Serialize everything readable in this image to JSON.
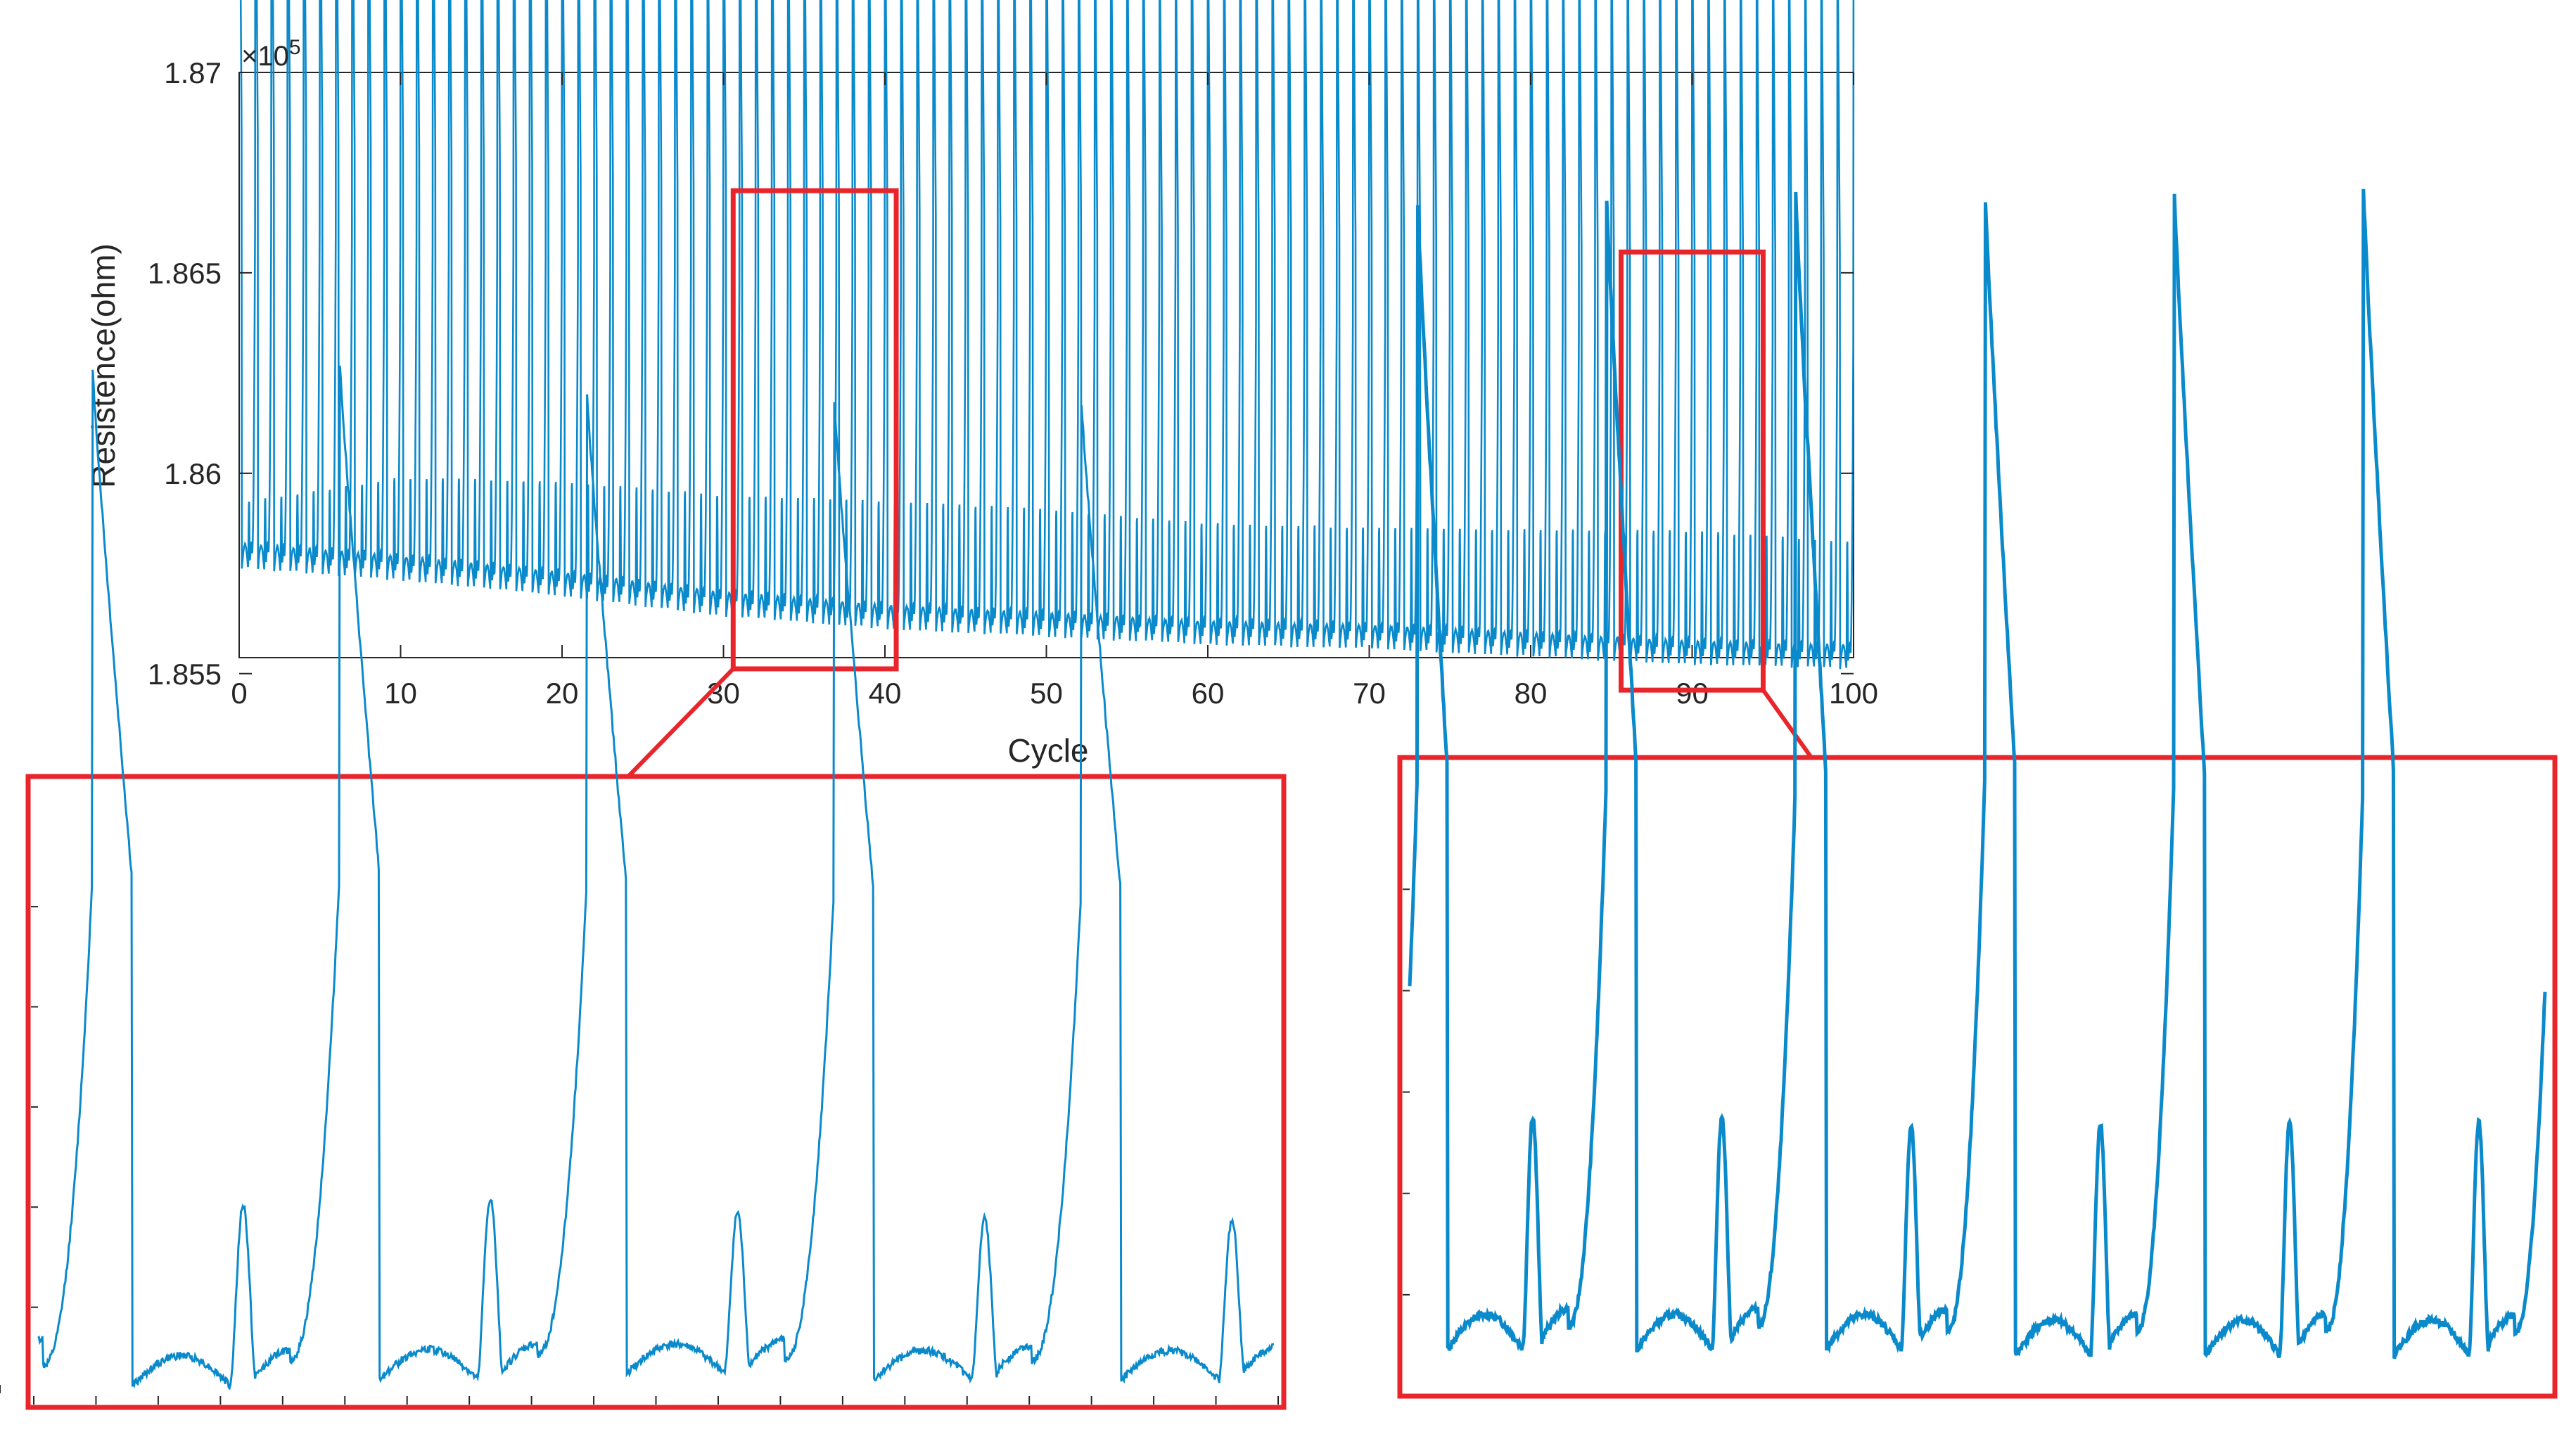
{
  "colors": {
    "series": "#0a8acb",
    "highlight": "#e8252b",
    "axis": "#262626",
    "background": "#ffffff"
  },
  "chart_data": [
    {
      "id": "main",
      "type": "line",
      "title": "",
      "xlabel": "Cycle",
      "ylabel": "Resistence(ohm)",
      "exponent_label": "×10",
      "exponent_power": "5",
      "xlim": [
        0,
        100
      ],
      "ylim": [
        1.8554,
        1.87
      ],
      "xticks": [
        0,
        10,
        20,
        30,
        40,
        50,
        60,
        70,
        80,
        90,
        100
      ],
      "xtick_labels": [
        "0",
        "10",
        "20",
        "30",
        "40",
        "50",
        "60",
        "70",
        "80",
        "90",
        "100"
      ],
      "yticks": [
        1.855,
        1.86,
        1.865,
        1.87
      ],
      "ytick_labels": [
        "1.855",
        "1.86",
        "1.865",
        "1.87"
      ],
      "grid": false,
      "series": [
        {
          "peaks": {
            "x": [
              0,
              10,
              20,
              30,
              40,
              50,
              60,
              70,
              80,
              85,
              90,
              95,
              100
            ],
            "y": [
              1.868,
              1.8675,
              1.867,
              1.8665,
              1.866,
              1.8657,
              1.8655,
              1.8654,
              1.8652,
              1.8651,
              1.8651,
              1.8649,
              1.8649
            ]
          },
          "troughs": {
            "x": [
              0,
              10,
              20,
              30,
              40,
              50,
              60,
              70,
              80,
              90,
              100
            ],
            "y": [
              1.8575,
              1.8572,
              1.8568,
              1.8563,
              1.856,
              1.8558,
              1.8556,
              1.8555,
              1.8553,
              1.8551,
              1.855
            ]
          },
          "shoulder": {
            "x": [
              0,
              10,
              20,
              30,
              40,
              50,
              60,
              70,
              80,
              90,
              100
            ],
            "y": [
              1.8585,
              1.8588,
              1.8586,
              1.8582,
              1.858,
              1.8578,
              1.8575,
              1.8574,
              1.8573,
              1.8572,
              1.857
            ]
          },
          "cycles": 100
        }
      ],
      "highlight_boxes": [
        {
          "x_range": [
            30.6,
            40.7
          ],
          "y_range": [
            1.85512,
            1.86705
          ]
        },
        {
          "x_range": [
            85.6,
            94.4
          ],
          "y_range": [
            1.85459,
            1.86552
          ]
        }
      ]
    },
    {
      "id": "zoom-left",
      "type": "line",
      "xlabel": "",
      "ylabel": "",
      "cycles_shown": 5,
      "series": [
        {
          "peaks": [
            0.86,
            0.85,
            0.86,
            0.84,
            0.83
          ],
          "secondary_bumps": [
            0.18,
            0.19,
            0.2,
            0.19,
            0.18
          ],
          "troughs": [
            0.03,
            0.01,
            0.02,
            0.03,
            0.02
          ]
        }
      ]
    },
    {
      "id": "zoom-right",
      "type": "line",
      "xlabel": "",
      "ylabel": "",
      "cycles_shown": 6,
      "series": [
        {
          "peaks": [
            0.99,
            0.99,
            0.99,
            0.99,
            0.99,
            0.99
          ],
          "secondary_bumps": [
            0.28,
            0.28,
            0.28,
            0.27,
            0.27,
            0.27
          ],
          "troughs": [
            0.06,
            0.05,
            0.05,
            0.05,
            0.04,
            0.04
          ]
        }
      ]
    }
  ]
}
